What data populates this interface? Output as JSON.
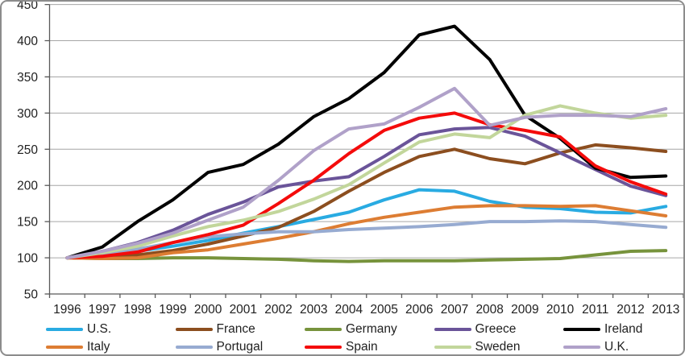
{
  "chart_data": {
    "type": "line",
    "title": "",
    "xlabel": "",
    "ylabel": "",
    "x": [
      1996,
      1997,
      1998,
      1999,
      2000,
      2001,
      2002,
      2003,
      2004,
      2005,
      2006,
      2007,
      2008,
      2009,
      2010,
      2011,
      2012,
      2013
    ],
    "ylim": [
      50,
      450
    ],
    "ytick_step": 50,
    "grid": true,
    "legend_position": "bottom",
    "series": [
      {
        "name": "U.S.",
        "color": "#29ABE2",
        "values": [
          100,
          103,
          109,
          116,
          124,
          134,
          143,
          153,
          163,
          180,
          194,
          192,
          178,
          170,
          168,
          163,
          162,
          171
        ]
      },
      {
        "name": "France",
        "color": "#8C4E1F",
        "values": [
          100,
          101,
          104,
          110,
          119,
          130,
          142,
          164,
          192,
          218,
          240,
          250,
          237,
          230,
          245,
          256,
          252,
          247
        ]
      },
      {
        "name": "Germany",
        "color": "#77933C",
        "values": [
          100,
          99,
          99,
          100,
          100,
          99,
          98,
          96,
          95,
          96,
          96,
          96,
          97,
          98,
          99,
          104,
          109,
          110
        ]
      },
      {
        "name": "Greece",
        "color": "#6A5499",
        "values": [
          100,
          109,
          121,
          138,
          160,
          177,
          198,
          206,
          212,
          240,
          270,
          278,
          280,
          268,
          245,
          222,
          199,
          186
        ]
      },
      {
        "name": "Ireland",
        "color": "#000000",
        "values": [
          100,
          115,
          150,
          180,
          218,
          229,
          257,
          295,
          320,
          356,
          408,
          420,
          374,
          297,
          265,
          224,
          211,
          213
        ]
      },
      {
        "name": "Italy",
        "color": "#DD7D33",
        "values": [
          100,
          99,
          100,
          107,
          111,
          119,
          127,
          136,
          147,
          156,
          163,
          170,
          172,
          172,
          171,
          172,
          165,
          158
        ]
      },
      {
        "name": "Portugal",
        "color": "#97ABD1",
        "values": [
          100,
          105,
          112,
          121,
          129,
          133,
          136,
          136,
          139,
          141,
          143,
          146,
          150,
          150,
          151,
          150,
          146,
          142
        ]
      },
      {
        "name": "Spain",
        "color": "#F40B0B",
        "values": [
          100,
          102,
          108,
          121,
          132,
          145,
          175,
          207,
          244,
          276,
          293,
          300,
          284,
          276,
          267,
          227,
          205,
          188
        ]
      },
      {
        "name": "Sweden",
        "color": "#C2D69B",
        "values": [
          100,
          107,
          116,
          130,
          143,
          152,
          164,
          181,
          201,
          231,
          260,
          271,
          266,
          297,
          310,
          300,
          293,
          297
        ]
      },
      {
        "name": "U.K.",
        "color": "#B0A1C9",
        "values": [
          100,
          109,
          120,
          134,
          152,
          170,
          207,
          248,
          278,
          285,
          308,
          334,
          283,
          294,
          297,
          297,
          295,
          306
        ]
      }
    ]
  },
  "style": {
    "axis_color": "#595959",
    "gridline_color": "#A6A6A6",
    "tick_label_color": "#1f1f1f",
    "line_width": 4
  }
}
